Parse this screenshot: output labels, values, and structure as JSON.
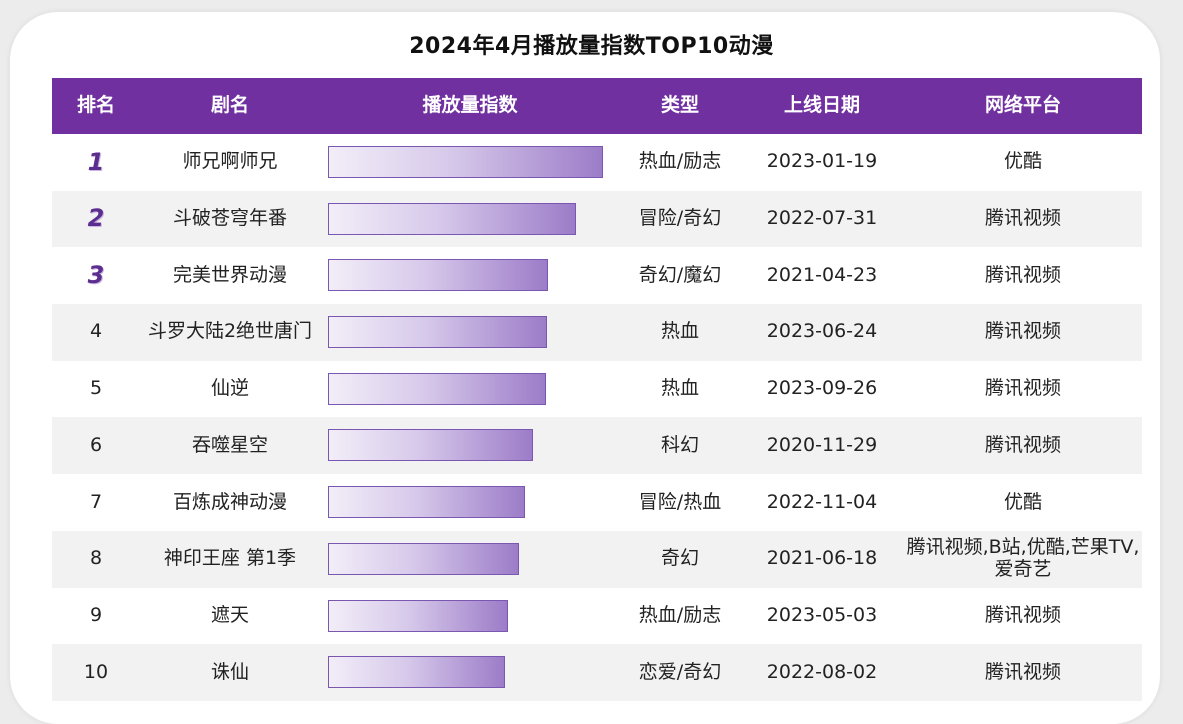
{
  "title": "2024年4月播放量指数TOP10动漫",
  "headers": {
    "rank": "排名",
    "name": "剧名",
    "index": "播放量指数",
    "type": "类型",
    "date": "上线日期",
    "platform": "网络平台"
  },
  "colors": {
    "header_bg": "#7030a0",
    "bar_start": "#f2eef8",
    "bar_end": "#9c7cc8",
    "top_rank": "#5b2d8e"
  },
  "rows": [
    {
      "rank": "1",
      "name": "师兄啊师兄",
      "type": "热血/励志",
      "date": "2023-01-19",
      "platform": "优酷"
    },
    {
      "rank": "2",
      "name": "斗破苍穹年番",
      "type": "冒险/奇幻",
      "date": "2022-07-31",
      "platform": "腾讯视频"
    },
    {
      "rank": "3",
      "name": "完美世界动漫",
      "type": "奇幻/魔幻",
      "date": "2021-04-23",
      "platform": "腾讯视频"
    },
    {
      "rank": "4",
      "name": "斗罗大陆2绝世唐门",
      "type": "热血",
      "date": "2023-06-24",
      "platform": "腾讯视频"
    },
    {
      "rank": "5",
      "name": "仙逆",
      "type": "热血",
      "date": "2023-09-26",
      "platform": "腾讯视频"
    },
    {
      "rank": "6",
      "name": "吞噬星空",
      "type": "科幻",
      "date": "2020-11-29",
      "platform": "腾讯视频"
    },
    {
      "rank": "7",
      "name": "百炼成神动漫",
      "type": "冒险/热血",
      "date": "2022-11-04",
      "platform": "优酷"
    },
    {
      "rank": "8",
      "name": "神印王座 第1季",
      "type": "奇幻",
      "date": "2021-06-18",
      "platform": "腾讯视频,B站,优酷,芒果TV,爱奇艺"
    },
    {
      "rank": "9",
      "name": "遮天",
      "type": "热血/励志",
      "date": "2023-05-03",
      "platform": "腾讯视频"
    },
    {
      "rank": "10",
      "name": "诛仙",
      "type": "恋爱/奇幻",
      "date": "2022-08-02",
      "platform": "腾讯视频"
    }
  ],
  "chart_data": {
    "type": "bar",
    "title": "2024年4月播放量指数TOP10动漫",
    "categories": [
      "师兄啊师兄",
      "斗破苍穹年番",
      "完美世界动漫",
      "斗罗大陆2绝世唐门",
      "仙逆",
      "吞噬星空",
      "百炼成神动漫",
      "神印王座 第1季",
      "遮天",
      "诛仙"
    ],
    "values": [
      100,
      90,
      80,
      79.5,
      79.3,
      74.5,
      71.5,
      69.5,
      65.5,
      64.5
    ],
    "value_scale": "relative to rank 1 = 100 (no values printed)",
    "ylim": [
      0,
      100
    ]
  }
}
